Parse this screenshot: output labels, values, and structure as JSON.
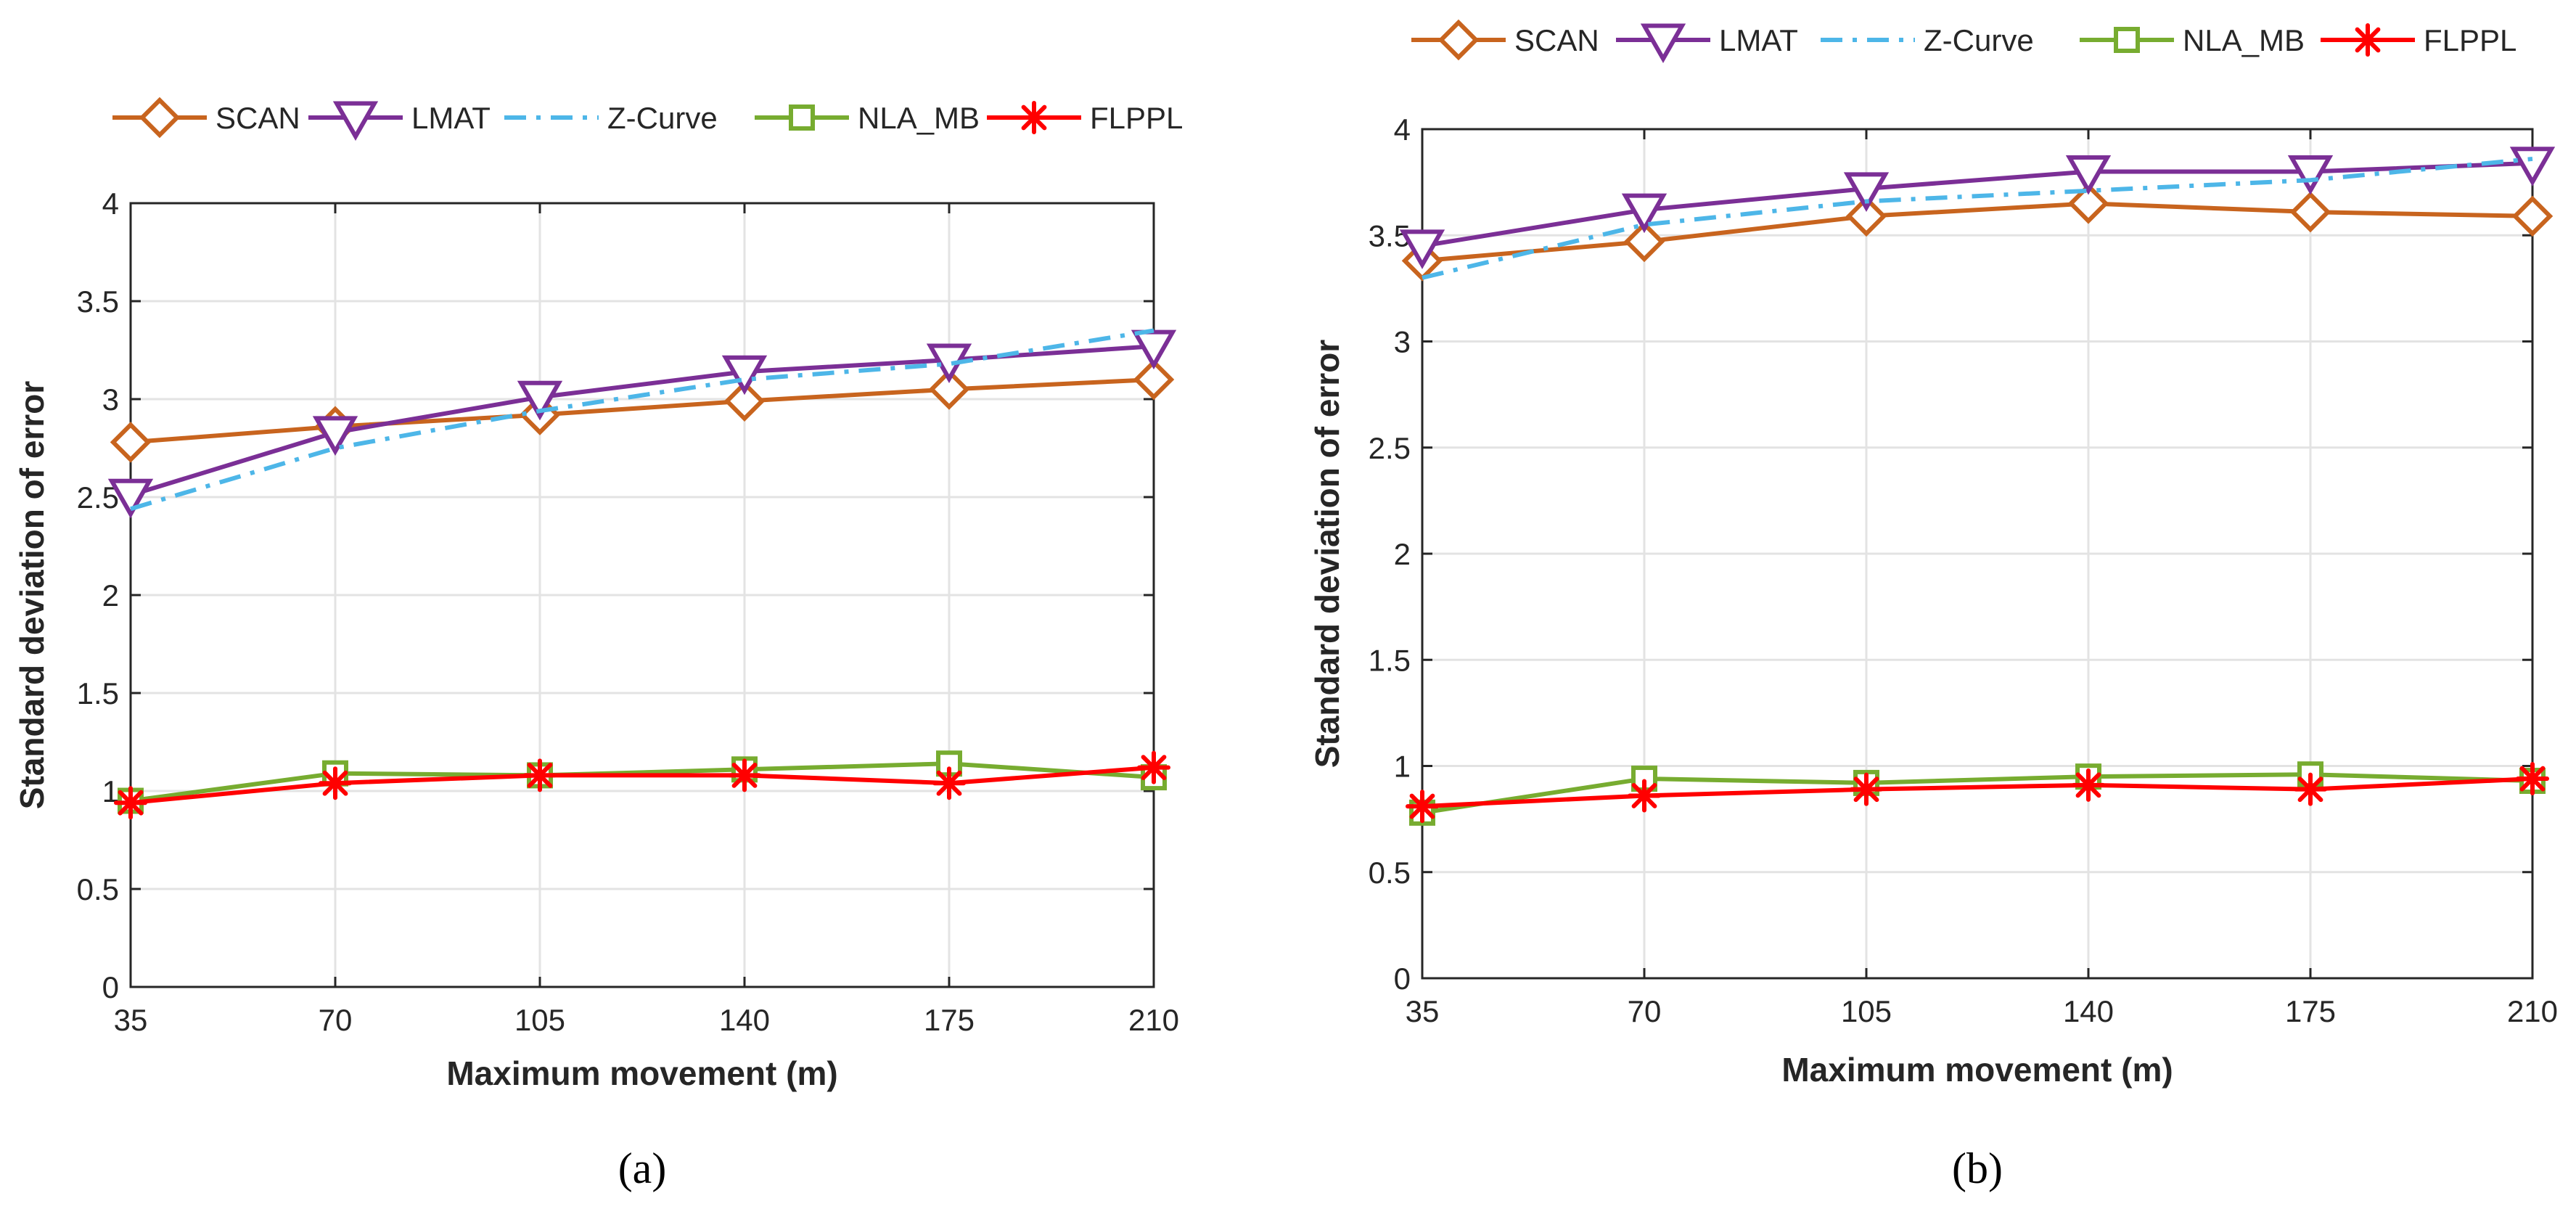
{
  "chart_data": [
    {
      "type": "line",
      "panel_caption": "(a)",
      "xlabel": "Maximum movement (m)",
      "ylabel": "Standard deviation of error",
      "x": [
        35,
        70,
        105,
        140,
        175,
        210
      ],
      "x_tick_labels": [
        "35",
        "70",
        "105",
        "140",
        "175",
        "210"
      ],
      "y_tick_labels": [
        "0",
        "0.5",
        "1",
        "1.5",
        "2",
        "2.5",
        "3",
        "3.5",
        "4"
      ],
      "xlim": [
        35,
        210
      ],
      "ylim": [
        0,
        4
      ],
      "grid": true,
      "legend_position": "top",
      "series": [
        {
          "name": "SCAN",
          "values": [
            2.78,
            2.86,
            2.92,
            2.99,
            3.05,
            3.1
          ],
          "color": "#C8641E",
          "marker": "diamond",
          "line": "solid"
        },
        {
          "name": "LMAT",
          "values": [
            2.51,
            2.83,
            3.01,
            3.14,
            3.2,
            3.27
          ],
          "color": "#7B2F96",
          "marker": "triangle-down",
          "line": "solid"
        },
        {
          "name": "Z-Curve",
          "values": [
            2.44,
            2.75,
            2.94,
            3.1,
            3.18,
            3.35
          ],
          "color": "#4DB6E8",
          "marker": "none",
          "line": "dashdot"
        },
        {
          "name": "NLA_MB",
          "values": [
            0.95,
            1.09,
            1.08,
            1.11,
            1.14,
            1.07
          ],
          "color": "#77AC30",
          "marker": "square",
          "line": "solid"
        },
        {
          "name": "FLPPL",
          "values": [
            0.94,
            1.04,
            1.08,
            1.08,
            1.04,
            1.12
          ],
          "color": "#FF0000",
          "marker": "asterisk",
          "line": "solid"
        }
      ]
    },
    {
      "type": "line",
      "panel_caption": "(b)",
      "xlabel": "Maximum movement (m)",
      "ylabel": "Standard deviation of error",
      "x": [
        35,
        70,
        105,
        140,
        175,
        210
      ],
      "x_tick_labels": [
        "35",
        "70",
        "105",
        "140",
        "175",
        "210"
      ],
      "y_tick_labels": [
        "0",
        "0.5",
        "1",
        "1.5",
        "2",
        "2.5",
        "3",
        "3.5",
        "4"
      ],
      "xlim": [
        35,
        210
      ],
      "ylim": [
        0,
        4
      ],
      "grid": true,
      "legend_position": "top",
      "series": [
        {
          "name": "SCAN",
          "values": [
            3.38,
            3.47,
            3.59,
            3.65,
            3.61,
            3.59
          ],
          "color": "#C8641E",
          "marker": "diamond",
          "line": "solid"
        },
        {
          "name": "LMAT",
          "values": [
            3.45,
            3.62,
            3.72,
            3.8,
            3.8,
            3.84
          ],
          "color": "#7B2F96",
          "marker": "triangle-down",
          "line": "solid"
        },
        {
          "name": "Z-Curve",
          "values": [
            3.3,
            3.55,
            3.66,
            3.71,
            3.76,
            3.86
          ],
          "color": "#4DB6E8",
          "marker": "none",
          "line": "dashdot"
        },
        {
          "name": "NLA_MB",
          "values": [
            0.78,
            0.94,
            0.92,
            0.95,
            0.96,
            0.93
          ],
          "color": "#77AC30",
          "marker": "square",
          "line": "solid"
        },
        {
          "name": "FLPPL",
          "values": [
            0.81,
            0.86,
            0.89,
            0.91,
            0.89,
            0.94
          ],
          "color": "#FF0000",
          "marker": "asterisk",
          "line": "solid"
        }
      ]
    }
  ]
}
